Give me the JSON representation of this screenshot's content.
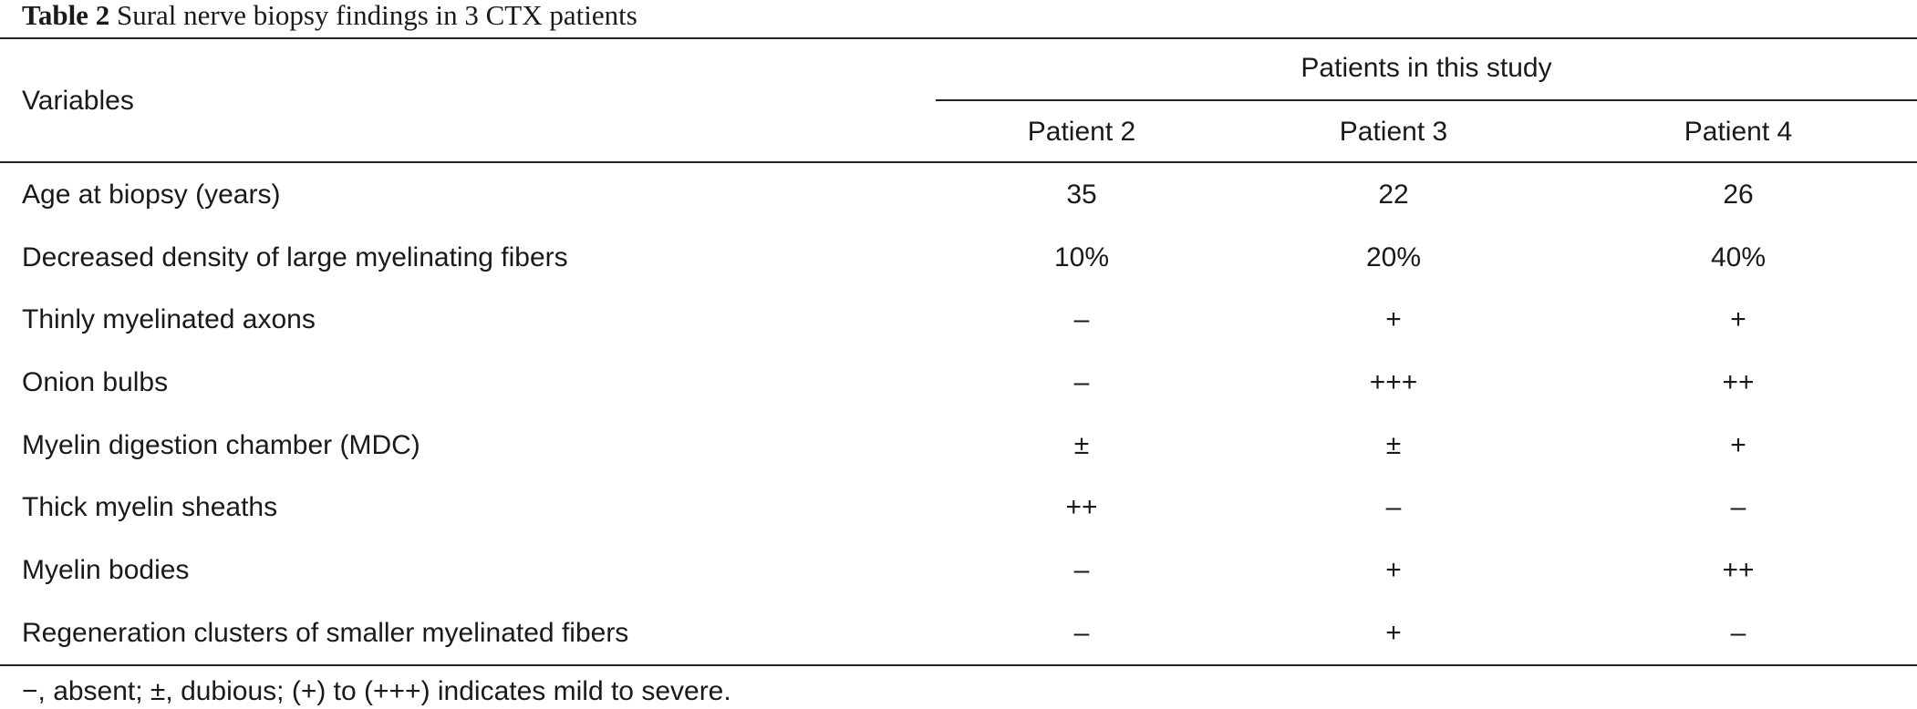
{
  "caption": {
    "label": "Table 2",
    "text": " Sural nerve biopsy findings in 3 CTX patients"
  },
  "header": {
    "variables": "Variables",
    "group": "Patients in this study",
    "columns": [
      "Patient 2",
      "Patient 3",
      "Patient 4"
    ]
  },
  "rows": [
    {
      "label": "Age at biopsy (years)",
      "values": [
        "35",
        "22",
        "26"
      ]
    },
    {
      "label": "Decreased density of large myelinating fibers",
      "values": [
        "10%",
        "20%",
        "40%"
      ]
    },
    {
      "label": "Thinly myelinated axons",
      "values": [
        "–",
        "+",
        "+"
      ]
    },
    {
      "label": "Onion bulbs",
      "values": [
        "–",
        "+++",
        "++"
      ]
    },
    {
      "label": "Myelin digestion chamber (MDC)",
      "values": [
        "±",
        "±",
        "+"
      ]
    },
    {
      "label": "Thick myelin sheaths",
      "values": [
        "++",
        "–",
        "–"
      ]
    },
    {
      "label": "Myelin bodies",
      "values": [
        "–",
        "+",
        "++"
      ]
    },
    {
      "label": "Regeneration clusters of smaller myelinated fibers",
      "values": [
        "–",
        "+",
        "–"
      ]
    }
  ],
  "footnote": "−, absent; ±, dubious; (+) to (+++) indicates mild to severe."
}
